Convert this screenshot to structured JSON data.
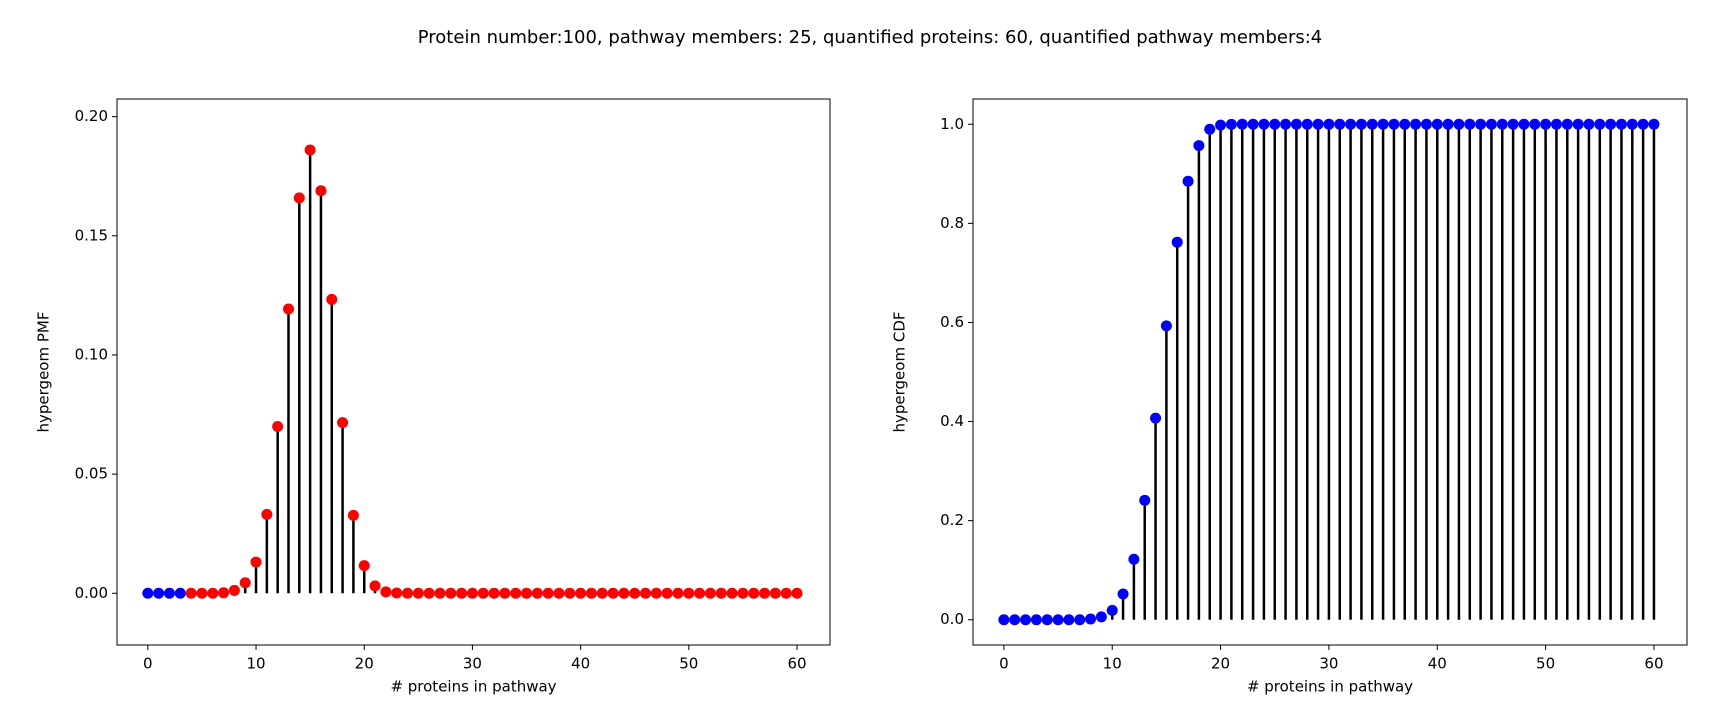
{
  "title": "Protein number:100, pathway members: 25, quantified proteins: 60, quantified pathway members:4",
  "chart_data": [
    {
      "type": "stem",
      "xlabel": "# proteins in pathway",
      "ylabel": "hypergeom PMF",
      "xlim": [
        -2.85,
        63.05
      ],
      "ylim": [
        -0.0217,
        0.2074
      ],
      "xticks": [
        0,
        10,
        20,
        30,
        40,
        50,
        60
      ],
      "yticks": [
        {
          "value": 0,
          "label": "0.00"
        },
        {
          "value": 0.05,
          "label": "0.05"
        },
        {
          "value": 0.1,
          "label": "0.10"
        },
        {
          "value": 0.15,
          "label": "0.15"
        },
        {
          "value": 0.2,
          "label": "0.20"
        }
      ],
      "stem_color": "#000000",
      "series": [
        {
          "color": "#0000ff",
          "x": [
            0,
            1,
            2,
            3
          ],
          "values": [
            0,
            0,
            0,
            0
          ]
        },
        {
          "color": "#ff0000",
          "x": [
            4,
            5,
            6,
            7,
            8,
            9,
            10,
            11,
            12,
            13,
            14,
            15,
            16,
            17,
            18,
            19,
            20,
            21,
            22,
            23,
            24,
            25,
            26,
            27,
            28,
            29,
            30,
            31,
            32,
            33,
            34,
            35,
            36,
            37,
            38,
            39,
            40,
            41,
            42,
            43,
            44,
            45,
            46,
            47,
            48,
            49,
            50,
            51,
            52,
            53,
            54,
            55,
            56,
            57,
            58,
            59,
            60
          ],
          "values": [
            0,
            0,
            0,
            0.0002,
            0.0012,
            0.0044,
            0.0131,
            0.0331,
            0.07,
            0.1193,
            0.1659,
            0.186,
            0.1689,
            0.1233,
            0.0716,
            0.0327,
            0.0116,
            0.0031,
            0.0006,
            0.0001,
            0,
            0,
            0,
            0,
            0,
            0,
            0,
            0,
            0,
            0,
            0,
            0,
            0,
            0,
            0,
            0,
            0,
            0,
            0,
            0,
            0,
            0,
            0,
            0,
            0,
            0,
            0,
            0,
            0,
            0,
            0,
            0,
            0,
            0,
            0,
            0,
            0
          ]
        }
      ]
    },
    {
      "type": "stem",
      "xlabel": "# proteins in pathway",
      "ylabel": "hypergeom CDF",
      "xlim": [
        -2.85,
        63.05
      ],
      "ylim": [
        -0.051,
        1.051
      ],
      "xticks": [
        0,
        10,
        20,
        30,
        40,
        50,
        60
      ],
      "yticks": [
        {
          "value": 0,
          "label": "0.0"
        },
        {
          "value": 0.2,
          "label": "0.2"
        },
        {
          "value": 0.4,
          "label": "0.4"
        },
        {
          "value": 0.6,
          "label": "0.6"
        },
        {
          "value": 0.8,
          "label": "0.8"
        },
        {
          "value": 1,
          "label": "1.0"
        }
      ],
      "stem_color": "#000000",
      "series": [
        {
          "color": "#0000ff",
          "x": [
            0,
            1,
            2,
            3,
            4,
            5,
            6,
            7,
            8,
            9,
            10,
            11,
            12,
            13,
            14,
            15,
            16,
            17,
            18,
            19,
            20,
            21,
            22,
            23,
            24,
            25,
            26,
            27,
            28,
            29,
            30,
            31,
            32,
            33,
            34,
            35,
            36,
            37,
            38,
            39,
            40,
            41,
            42,
            43,
            44,
            45,
            46,
            47,
            48,
            49,
            50,
            51,
            52,
            53,
            54,
            55,
            56,
            57,
            58,
            59,
            60
          ],
          "values": [
            0,
            0,
            0,
            0,
            0,
            0,
            0,
            0,
            0.0014,
            0.0058,
            0.0189,
            0.052,
            0.122,
            0.241,
            0.407,
            0.593,
            0.762,
            0.885,
            0.957,
            0.99,
            0.9983,
            0.9997,
            1,
            1,
            1,
            1,
            1,
            1,
            1,
            1,
            1,
            1,
            1,
            1,
            1,
            1,
            1,
            1,
            1,
            1,
            1,
            1,
            1,
            1,
            1,
            1,
            1,
            1,
            1,
            1,
            1,
            1,
            1,
            1,
            1,
            1,
            1,
            1,
            1,
            1,
            1
          ]
        }
      ]
    }
  ]
}
